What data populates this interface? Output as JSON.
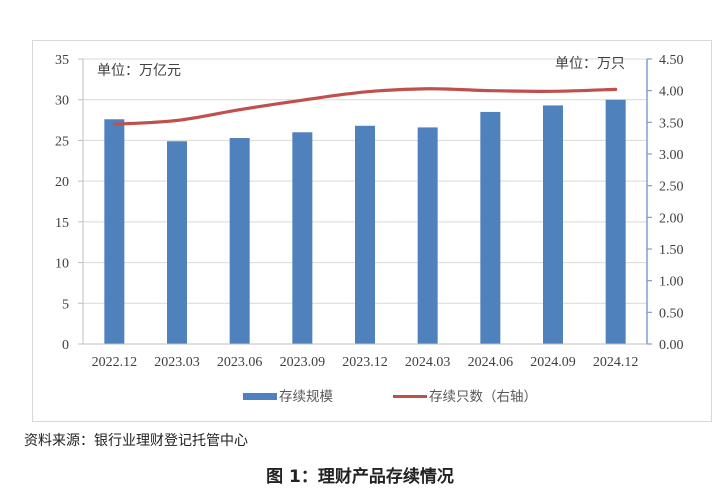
{
  "chart_data": {
    "type": "bar+line",
    "title": "图 1：理财产品存续情况",
    "categories": [
      "2022.12",
      "2023.03",
      "2023.06",
      "2023.09",
      "2023.12",
      "2024.03",
      "2024.06",
      "2024.09",
      "2024.12"
    ],
    "series": [
      {
        "name": "存续规模",
        "type": "bar",
        "axis": "left",
        "color": "#4F81BD",
        "values": [
          27.6,
          24.9,
          25.3,
          26.0,
          26.8,
          26.6,
          28.5,
          29.3,
          30.0
        ]
      },
      {
        "name": "存续只数（右轴）",
        "type": "line",
        "axis": "right",
        "color": "#C0504D",
        "values": [
          3.47,
          3.53,
          3.7,
          3.85,
          3.98,
          4.03,
          4.0,
          3.99,
          4.02
        ]
      }
    ],
    "left_axis": {
      "unit_label": "单位：万亿元",
      "ylim": [
        0,
        35
      ],
      "ticks": [
        "0",
        "5",
        "10",
        "15",
        "20",
        "25",
        "30",
        "35"
      ]
    },
    "right_axis": {
      "unit_label": "单位：万只",
      "ylim": [
        0,
        4.5
      ],
      "ticks": [
        "0.00",
        "0.50",
        "1.00",
        "1.50",
        "2.00",
        "2.50",
        "3.00",
        "3.50",
        "4.00",
        "4.50"
      ]
    },
    "grid": true,
    "legend_position": "bottom"
  },
  "labels": {
    "left_unit": "单位：万亿元",
    "right_unit": "单位：万只",
    "legend_bar": "存续规模",
    "legend_line": "存续只数（右轴）",
    "source": "资料来源：银行业理财登记托管中心",
    "caption": "图 1：理财产品存续情况"
  }
}
